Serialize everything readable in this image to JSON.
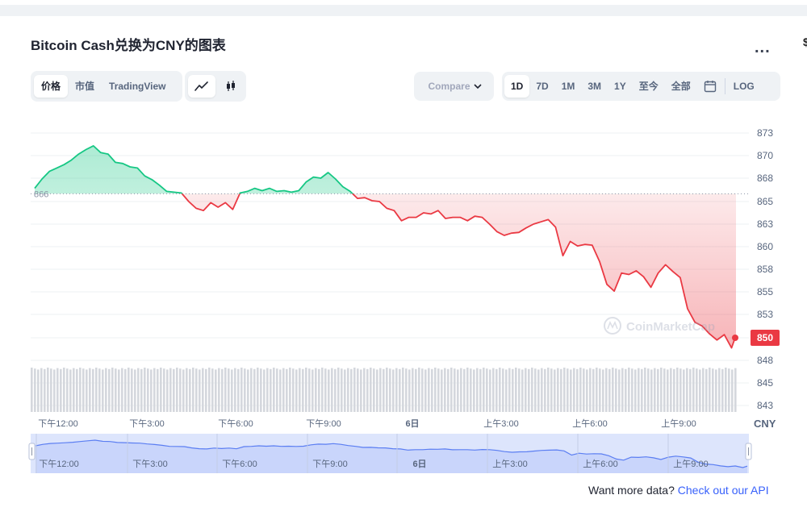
{
  "title": "Bitcoin Cash兑换为CNY的图表",
  "more_label": "...",
  "view_tabs": [
    {
      "label": "价格",
      "active": true
    },
    {
      "label": "市值",
      "active": false
    },
    {
      "label": "TradingView",
      "active": false
    }
  ],
  "chart_type_icons": [
    "line-chart-icon",
    "candlestick-icon"
  ],
  "compare_label": "Compare",
  "range_tabs": [
    {
      "label": "1D",
      "active": true
    },
    {
      "label": "7D",
      "active": false
    },
    {
      "label": "1M",
      "active": false
    },
    {
      "label": "3M",
      "active": false
    },
    {
      "label": "1Y",
      "active": false
    },
    {
      "label": "至今",
      "active": false
    },
    {
      "label": "全部",
      "active": false
    }
  ],
  "log_label": "LOG",
  "currency_label": "CNY",
  "watermark": "CoinMarketCap",
  "api_text": "Want more data?",
  "api_link": "Check out our API",
  "colors": {
    "up": "#16c784",
    "down": "#ea3943",
    "volume": "#d4d7dd",
    "navigator": "#5b7ef2"
  },
  "chart_data": {
    "type": "line",
    "reference_value": 866,
    "current_value": 850,
    "y_ticks": [
      873,
      870,
      868,
      865,
      863,
      860,
      858,
      855,
      853,
      850,
      848,
      845,
      843
    ],
    "x_labels": [
      "下午12:00",
      "下午3:00",
      "下午6:00",
      "下午9:00",
      "6日",
      "上午3:00",
      "上午6:00",
      "上午9:00"
    ],
    "navigator_x_labels": [
      "下午12:00",
      "下午3:00",
      "下午6:00",
      "下午9:00",
      "6日",
      "上午3:00",
      "上午6:00",
      "上午9:00"
    ],
    "x_hours": [
      0,
      0.25,
      0.5,
      0.75,
      1,
      1.25,
      1.5,
      1.75,
      2,
      2.25,
      2.5,
      2.75,
      3,
      3.25,
      3.5,
      3.75,
      4,
      4.25,
      4.5,
      4.75,
      5,
      5.25,
      5.5,
      5.75,
      6,
      6.25,
      6.5,
      6.75,
      7,
      7.25,
      7.5,
      7.75,
      8,
      8.25,
      8.5,
      8.75,
      9,
      9.25,
      9.5,
      9.75,
      10,
      10.25,
      10.5,
      10.75,
      11,
      11.25,
      11.5,
      11.75,
      12,
      12.25,
      12.5,
      12.75,
      13,
      13.25,
      13.5,
      13.75,
      14,
      14.25,
      14.5,
      14.75,
      15,
      15.25,
      15.5,
      15.75,
      16,
      16.25,
      16.5,
      16.75,
      17,
      17.25,
      17.5,
      17.75,
      18,
      18.25,
      18.5,
      18.75,
      19,
      19.25,
      19.5,
      19.75,
      20,
      20.25,
      20.5,
      20.75,
      21,
      21.25,
      21.5,
      21.75,
      22,
      22.25,
      22.5,
      22.75,
      23,
      23.25,
      23.5,
      23.75,
      23.9
    ],
    "prices": [
      866.7,
      867.9,
      868.6,
      868.9,
      869.2,
      869.6,
      870.2,
      870.8,
      871.3,
      870.4,
      870.2,
      869.4,
      869.3,
      869.0,
      868.9,
      868.2,
      867.8,
      867.1,
      866.3,
      866.2,
      866.1,
      865.0,
      864.4,
      864.2,
      864.9,
      864.5,
      864.9,
      864.3,
      866.1,
      866.3,
      866.7,
      866.4,
      866.7,
      866.3,
      866.4,
      866.2,
      866.4,
      867.5,
      868.1,
      868.0,
      868.5,
      867.9,
      866.9,
      866.3,
      865.4,
      865.5,
      865.1,
      865.0,
      864.4,
      864.2,
      863.3,
      863.6,
      863.6,
      864.0,
      863.9,
      864.2,
      863.5,
      863.6,
      863.6,
      863.3,
      863.7,
      863.6,
      863.0,
      862.0,
      861.5,
      861.8,
      861.9,
      862.5,
      863.0,
      863.2,
      863.4,
      862.6,
      859.2,
      860.7,
      860.1,
      860.3,
      860.2,
      858.7,
      856.0,
      855.1,
      857.5,
      857.3,
      857.8,
      857.0,
      855.6,
      857.5,
      858.4,
      857.7,
      856.9,
      853.5,
      852.0,
      851.5,
      850.5,
      849.8,
      850.4,
      849.1,
      850.3
    ]
  }
}
